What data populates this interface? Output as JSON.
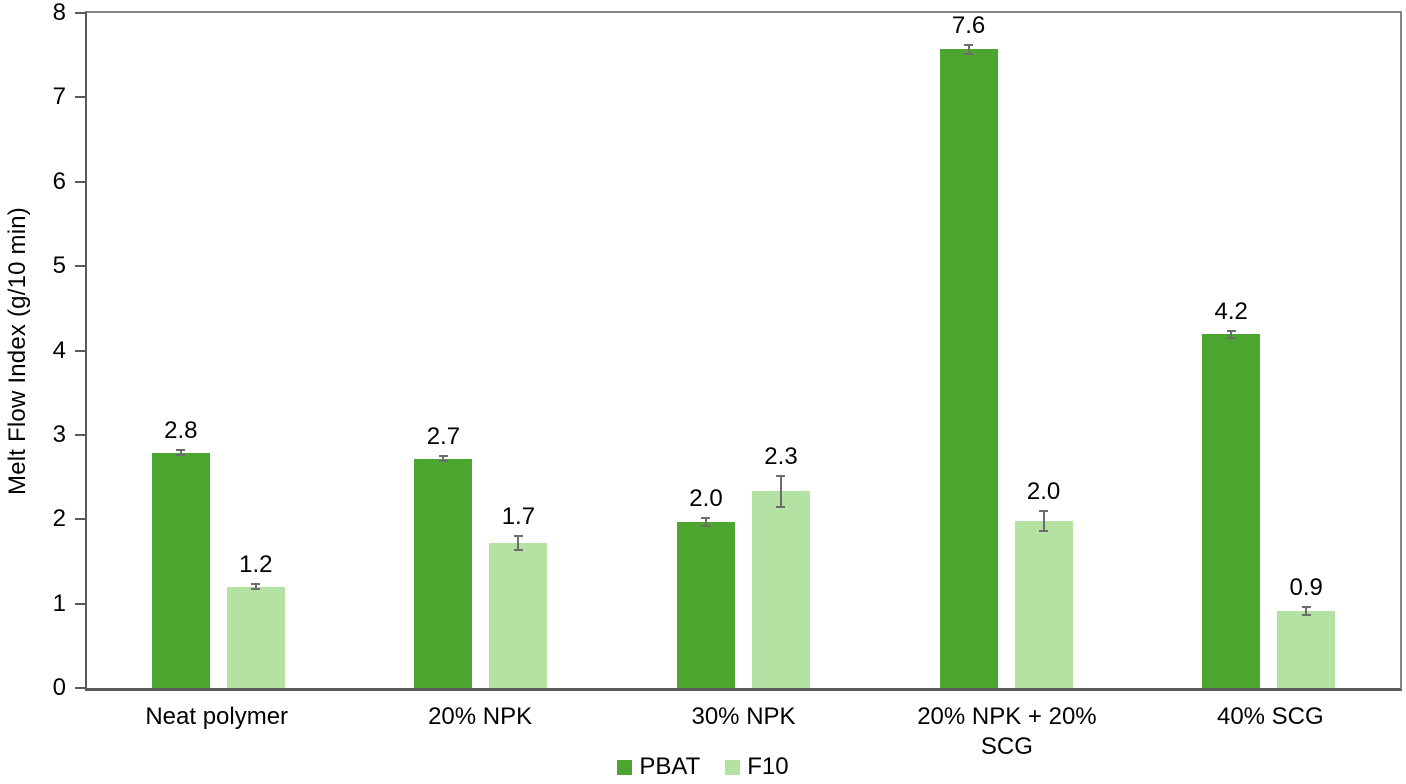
{
  "chart_data": {
    "type": "bar",
    "title": "",
    "xlabel": "",
    "ylabel": "Melt Flow Index (g/10 min)",
    "ylim": [
      0,
      8
    ],
    "yticks": [
      "0",
      "1",
      "2",
      "3",
      "4",
      "5",
      "6",
      "7",
      "8"
    ],
    "grid": false,
    "legend_position": "bottom-center",
    "categories": [
      "Neat polymer",
      "20% NPK",
      "30% NPK",
      "20% NPK + 20% SCG",
      "40% SCG"
    ],
    "series": [
      {
        "name": "PBAT",
        "color": "#4BA52E",
        "values": [
          2.79,
          2.72,
          1.97,
          7.57,
          4.19
        ],
        "labels": [
          "2.8",
          "2.7",
          "2.0",
          "7.6",
          "4.2"
        ],
        "errors": [
          0.03,
          0.03,
          0.05,
          0.05,
          0.04
        ]
      },
      {
        "name": "F10",
        "color": "#B3E2A3",
        "values": [
          1.2,
          1.72,
          2.33,
          1.98,
          0.91
        ],
        "labels": [
          "1.2",
          "1.7",
          "2.3",
          "2.0",
          "0.9"
        ],
        "errors": [
          0.03,
          0.08,
          0.18,
          0.12,
          0.05
        ]
      }
    ],
    "style": {
      "axis_line_color": "#5a5a5a",
      "plot_border_color": "#848484",
      "error_bar_color": "#6d6d6d",
      "text_color": "#000000",
      "background": "#ffffff"
    }
  }
}
